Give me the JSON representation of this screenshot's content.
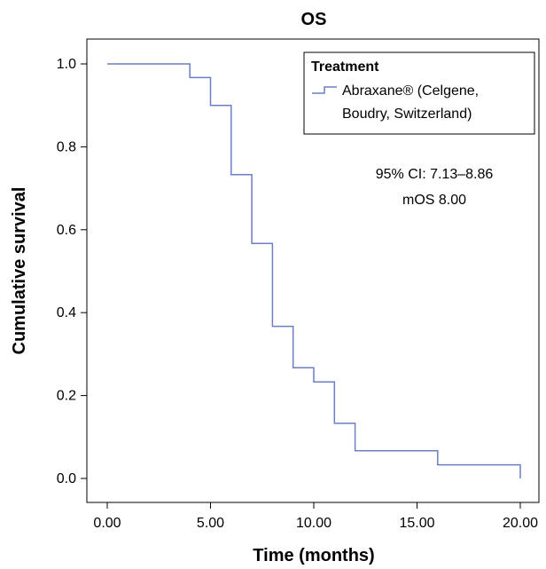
{
  "chart_data": {
    "type": "line",
    "title": "OS",
    "xlabel": "Time (months)",
    "ylabel": "Cumulative survival",
    "xlim": [
      0,
      20
    ],
    "ylim": [
      0,
      1
    ],
    "x_ticks": [
      "0.00",
      "5.00",
      "10.00",
      "15.00",
      "20.00"
    ],
    "y_ticks": [
      "0.0",
      "0.2",
      "0.4",
      "0.6",
      "0.8",
      "1.0"
    ],
    "grid": false,
    "legend": {
      "title": "Treatment",
      "placement": "top-right",
      "entries": [
        "Abraxane® (Celgene,",
        "Boudry, Switzerland)"
      ]
    },
    "annotations": [
      "95% CI: 7.13–8.86",
      "mOS 8.00"
    ],
    "series": [
      {
        "color": "#6b7fc4",
        "step": true,
        "points": [
          [
            0,
            1.0
          ],
          [
            4,
            0.967
          ],
          [
            5,
            0.9
          ],
          [
            6,
            0.733
          ],
          [
            7,
            0.567
          ],
          [
            8,
            0.367
          ],
          [
            9,
            0.267
          ],
          [
            10,
            0.233
          ],
          [
            11,
            0.133
          ],
          [
            12,
            0.067
          ],
          [
            16,
            0.033
          ],
          [
            20,
            0.0
          ]
        ]
      }
    ]
  }
}
